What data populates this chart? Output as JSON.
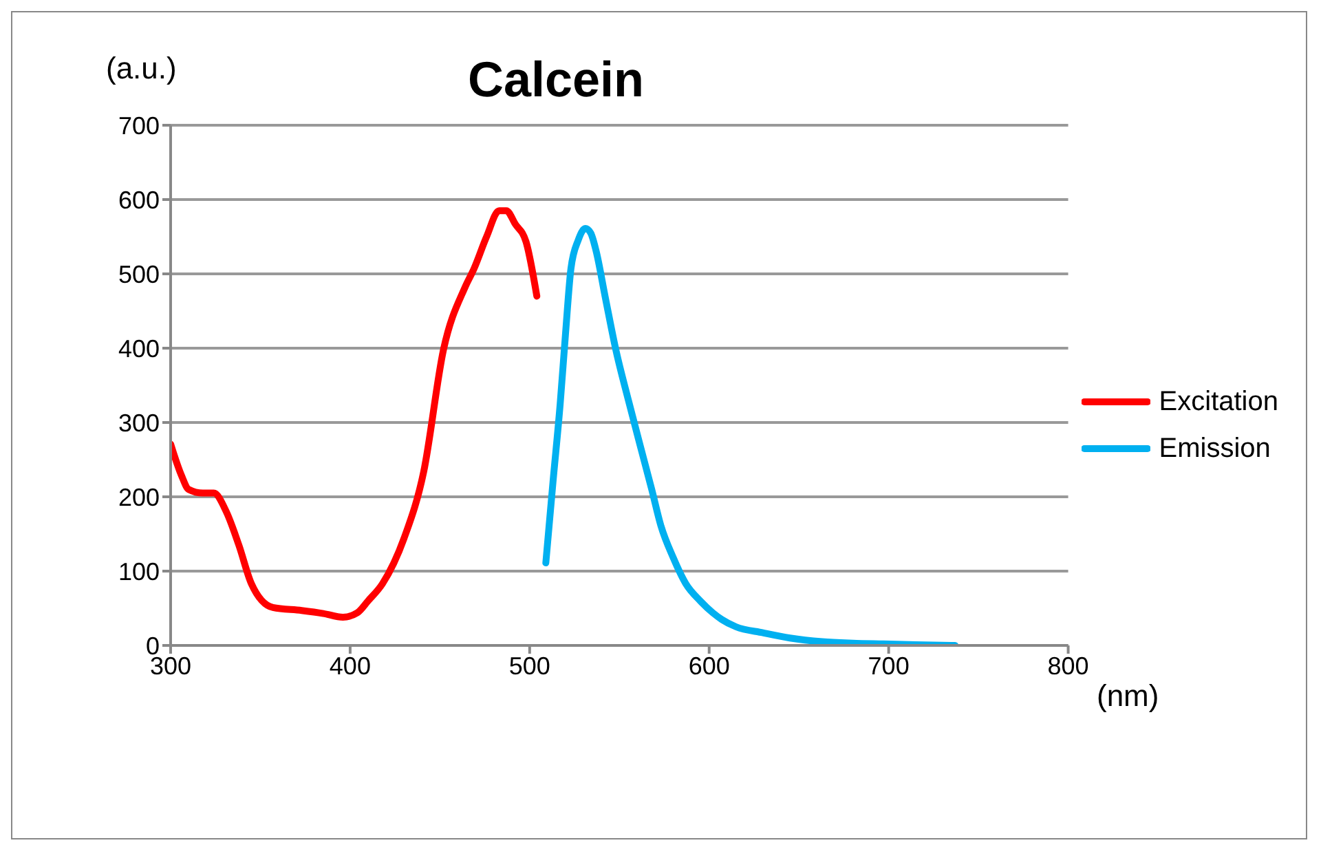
{
  "chart_data": {
    "type": "line",
    "title": "Calcein",
    "xlabel": "(nm)",
    "ylabel": "(a.u.)",
    "xlim": [
      300,
      800
    ],
    "xticks": [
      300,
      400,
      500,
      600,
      700,
      800
    ],
    "ylim": [
      0,
      700
    ],
    "yticks": [
      0,
      100,
      200,
      300,
      400,
      500,
      600,
      700
    ],
    "grid": "y",
    "legend": "right",
    "marker": "none",
    "line_style": "solid",
    "series": [
      {
        "name": "Excitation",
        "color": "#ff0000",
        "x": [
          300,
          306,
          310,
          318,
          324,
          331,
          338,
          345,
          357,
          373,
          385,
          396,
          404,
          410,
          418,
          430,
          441,
          452,
          464,
          469,
          476,
          483,
          487,
          492,
          498,
          504
        ],
        "values": [
          271,
          229,
          210,
          205,
          205,
          180,
          135,
          83,
          51,
          47,
          43,
          38,
          44,
          60,
          83,
          144,
          234,
          398,
          482,
          507,
          550,
          585,
          585,
          567,
          543,
          470
        ]
      },
      {
        "name": "Emission",
        "color": "#00b0f0",
        "x": [
          509,
          513,
          517,
          520,
          523,
          527,
          531,
          534,
          537,
          542,
          548,
          555,
          562,
          568,
          573,
          580,
          587,
          595,
          602,
          607,
          615,
          630,
          645,
          663,
          680,
          697,
          715,
          737
        ],
        "values": [
          111,
          220,
          325,
          420,
          507,
          545,
          561,
          555,
          531,
          470,
          398,
          330,
          265,
          210,
          162,
          118,
          83,
          60,
          44,
          35,
          25,
          17,
          10,
          5,
          3,
          2,
          1,
          0
        ]
      }
    ]
  }
}
